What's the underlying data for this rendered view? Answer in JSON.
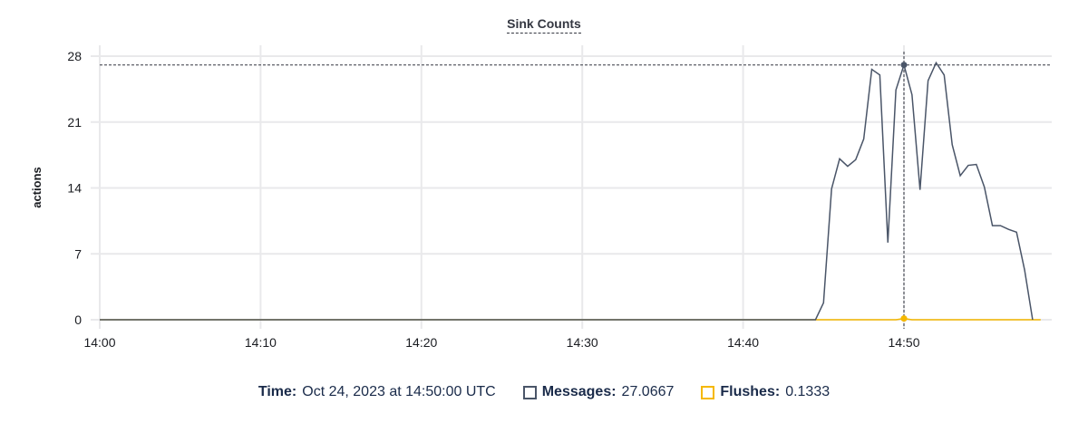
{
  "chart_data": {
    "type": "line",
    "title": "Sink Counts",
    "xlabel": "",
    "ylabel": "actions",
    "ylim": [
      0,
      28
    ],
    "yticks": [
      "0",
      "7",
      "14",
      "21",
      "28"
    ],
    "xlim": [
      "14:00:00",
      "14:59:30"
    ],
    "xticks": [
      "14:00",
      "14:10",
      "14:20",
      "14:30",
      "14:40",
      "14:50"
    ],
    "grid": true,
    "series": [
      {
        "name": "Messages",
        "color": "#4a5568",
        "x": [
          "14:00:00",
          "14:44:30",
          "14:45:00",
          "14:45:30",
          "14:46:00",
          "14:46:30",
          "14:47:00",
          "14:47:30",
          "14:48:00",
          "14:48:30",
          "14:49:00",
          "14:49:30",
          "14:50:00",
          "14:50:30",
          "14:51:00",
          "14:51:30",
          "14:52:00",
          "14:52:30",
          "14:53:00",
          "14:53:30",
          "14:54:00",
          "14:54:30",
          "14:55:00",
          "14:55:30",
          "14:56:00",
          "14:56:30",
          "14:57:00",
          "14:57:30",
          "14:58:00"
        ],
        "y": [
          0,
          0,
          1.8,
          13.9,
          17.1,
          16.3,
          17.0,
          19.2,
          26.6,
          26.0,
          8.2,
          24.4,
          27.0667,
          23.9,
          13.8,
          25.4,
          27.3,
          26.0,
          18.6,
          15.3,
          16.4,
          16.5,
          14.1,
          10.0,
          10.0,
          9.6,
          9.3,
          5.3,
          0
        ]
      },
      {
        "name": "Flushes",
        "color": "#f5b800",
        "x": [
          "14:00:00",
          "14:49:30",
          "14:50:00",
          "14:50:30",
          "14:58:30"
        ],
        "y": [
          0,
          0,
          0.1333,
          0,
          0
        ]
      }
    ],
    "crosshair": "14:50:00"
  },
  "tooltip": {
    "time_label": "Time:",
    "time_value": "Oct 24, 2023 at 14:50:00 UTC",
    "messages_label": "Messages:",
    "messages_value": "27.0667",
    "flushes_label": "Flushes:",
    "flushes_value": "0.1333"
  }
}
